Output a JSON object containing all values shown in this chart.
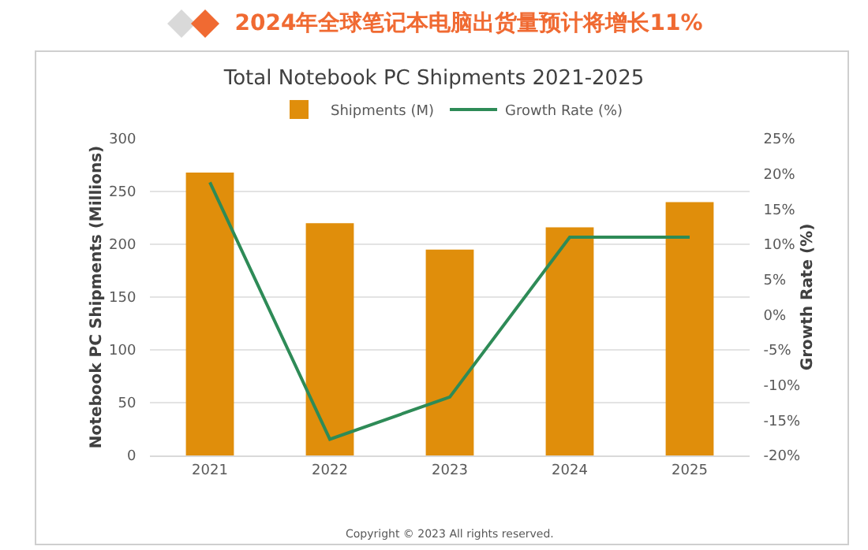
{
  "chart_data": {
    "type": "bar",
    "title": "2024年全球笔记本电脑出货量预计将增长11%",
    "subtitle": "Total Notebook PC Shipments 2021-2025",
    "ylabel": "Notebook PC Shipments (Millions)",
    "y2label": "Growth Rate (%)",
    "categories": [
      "2021",
      "2022",
      "2023",
      "2024",
      "2025"
    ],
    "series": [
      {
        "name": "Shipments (M)",
        "color": "#e08e0b",
        "values": [
          268,
          220,
          195,
          216,
          240
        ]
      },
      {
        "name": "Growth Rate (%)",
        "type": "line",
        "axis": "y2",
        "color": "#2e8b57",
        "values": [
          18.8,
          -17.7,
          -11.7,
          11,
          11
        ]
      }
    ],
    "ylim": [
      0,
      300
    ],
    "yticks": [
      0,
      50,
      100,
      150,
      200,
      250,
      300
    ],
    "y2lim": [
      -20,
      25
    ],
    "y2ticks": [
      {
        "value": -20,
        "label": "-20%"
      },
      {
        "value": -15,
        "label": "-15%"
      },
      {
        "value": -10,
        "label": "-10%"
      },
      {
        "value": -5,
        "label": "-5%"
      },
      {
        "value": 0,
        "label": "0%"
      },
      {
        "value": 5,
        "label": "5%"
      },
      {
        "value": 10,
        "label": "10%"
      },
      {
        "value": 15,
        "label": "15%"
      },
      {
        "value": 20,
        "label": "20%"
      },
      {
        "value": 25,
        "label": "25%"
      }
    ],
    "grid": "y",
    "legend": "top",
    "marker": "none",
    "line_style": "solid",
    "annotations": [
      "Copyright © 2023 All rights reserved."
    ]
  }
}
